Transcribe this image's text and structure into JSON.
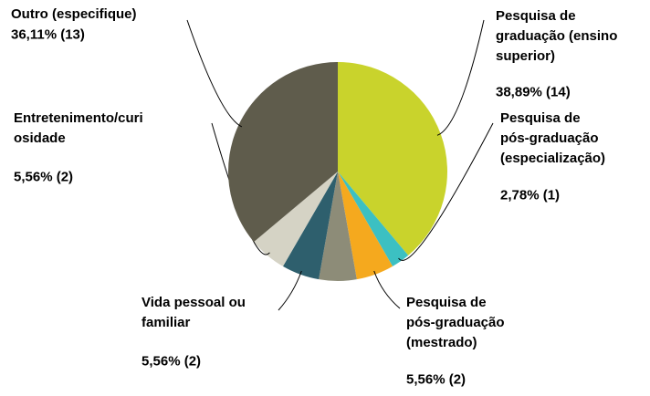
{
  "chart_data": {
    "type": "pie",
    "categories": [
      "Pesquisa de\ngraduação (ensino\nsuperior)",
      "Pesquisa de\npós-graduação\n(especialização)",
      "Pesquisa de\npós-graduação\n(mestrado)",
      null,
      "Vida pessoal ou\nfamiliar",
      "Entretenimento/curi\nosidade",
      "Outro (especifique)"
    ],
    "values": [
      38.89,
      2.78,
      5.56,
      5.56,
      5.56,
      5.56,
      36.11
    ],
    "value_labels": [
      "38,89% (14)",
      "2,78% (1)",
      "5,56% (2)",
      null,
      "5,56% (2)",
      "5,56% (2)",
      "36,11% (13)"
    ],
    "colors": [
      "#c9d32c",
      "#3cc0c2",
      "#f5a91e",
      "#8d8c78",
      "#2e5f6d",
      "#d5d3c5",
      "#5f5c4c"
    ]
  }
}
